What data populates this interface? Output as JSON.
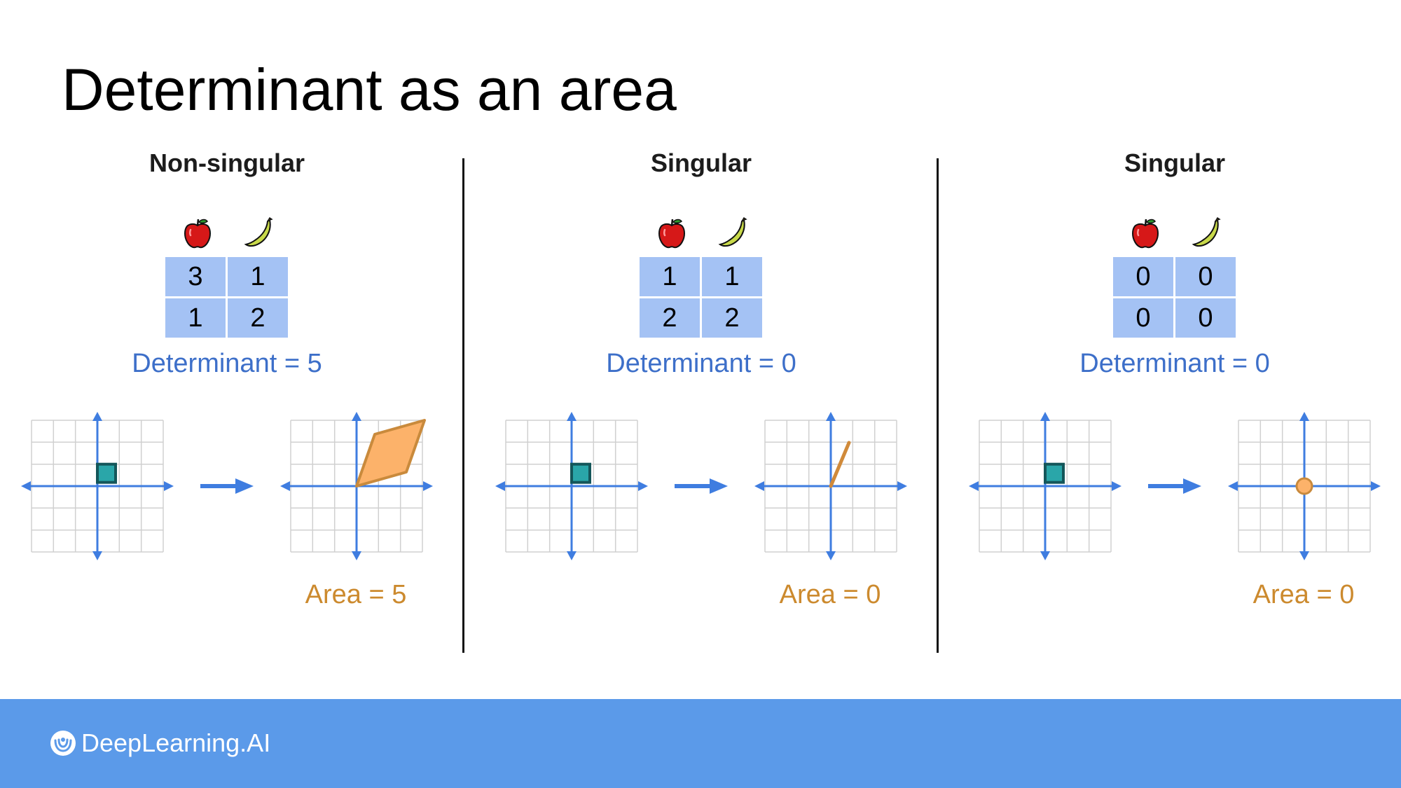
{
  "title": "Determinant as an area",
  "panels": [
    {
      "heading": "Non-singular",
      "matrix": [
        [
          "3",
          "1"
        ],
        [
          "1",
          "2"
        ]
      ],
      "determinant_text": "Determinant = 5",
      "area_text": "Area = 5",
      "result_shape": "parallelogram"
    },
    {
      "heading": "Singular",
      "matrix": [
        [
          "1",
          "1"
        ],
        [
          "2",
          "2"
        ]
      ],
      "determinant_text": "Determinant = 0",
      "area_text": "Area = 0",
      "result_shape": "segment"
    },
    {
      "heading": "Singular",
      "matrix": [
        [
          "0",
          "0"
        ],
        [
          "0",
          "0"
        ]
      ],
      "determinant_text": "Determinant = 0",
      "area_text": "Area = 0",
      "result_shape": "point"
    }
  ],
  "icons": {
    "fruit_1": "apple-icon",
    "fruit_2": "banana-icon",
    "transform": "arrow-right-icon"
  },
  "colors": {
    "matrix_cell": "#a4c2f4",
    "determinant_text": "#3d6fc9",
    "area_text": "#cc8a2e",
    "axis": "#3f7de0",
    "unit_square": "#2aa6a9",
    "result_shape": "#fcb26a",
    "footer": "#5b9ae9"
  },
  "footer": {
    "brand": "DeepLearning.AI"
  }
}
